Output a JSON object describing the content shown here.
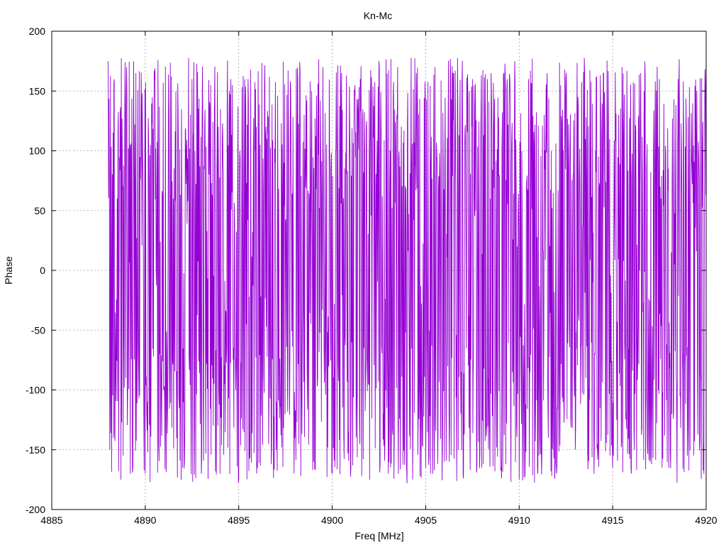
{
  "chart_data": {
    "type": "line",
    "title": "Kn-Mc",
    "xlabel": "Freq [MHz]",
    "ylabel": "Phase",
    "xlim": [
      4885,
      4920
    ],
    "ylim": [
      -200,
      200
    ],
    "xticks": [
      4885,
      4890,
      4895,
      4900,
      4905,
      4910,
      4915,
      4920
    ],
    "yticks": [
      -200,
      -150,
      -100,
      -50,
      0,
      50,
      100,
      150,
      200
    ],
    "grid": true,
    "legend": "none",
    "series": [
      {
        "color": "#9400d3",
        "x_start": 4888.0,
        "x_end": 4920.0,
        "sample_step": 0.02,
        "description_range": [
          -180,
          180
        ],
        "anchor_points": [
          [
            4888.0,
            175
          ],
          [
            4888.1,
            -150
          ],
          [
            4888.3,
            -140
          ],
          [
            4888.5,
            60
          ],
          [
            4888.7,
            -175
          ],
          [
            4889.0,
            170
          ],
          [
            4889.2,
            -170
          ],
          [
            4889.5,
            165
          ],
          [
            4890.0,
            -170
          ],
          [
            4890.5,
            160
          ],
          [
            4891.0,
            -100
          ],
          [
            4891.5,
            60
          ],
          [
            4892.0,
            -165
          ],
          [
            4892.5,
            160
          ],
          [
            4893.0,
            -170
          ],
          [
            4893.5,
            155
          ],
          [
            4894.0,
            -170
          ],
          [
            4894.5,
            150
          ],
          [
            4895.0,
            -175
          ],
          [
            4895.5,
            160
          ],
          [
            4896.0,
            -165
          ],
          [
            4896.5,
            110
          ],
          [
            4897.0,
            -150
          ],
          [
            4897.5,
            40
          ],
          [
            4898.0,
            -140
          ],
          [
            4898.5,
            130
          ],
          [
            4899.0,
            -160
          ],
          [
            4899.5,
            170
          ],
          [
            4900.0,
            -170
          ],
          [
            4900.5,
            165
          ],
          [
            4901.0,
            -165
          ],
          [
            4901.5,
            160
          ],
          [
            4902.0,
            -175
          ],
          [
            4902.5,
            175
          ],
          [
            4903.0,
            -170
          ],
          [
            4903.5,
            170
          ],
          [
            4904.0,
            -178
          ],
          [
            4904.5,
            165
          ],
          [
            4905.0,
            -165
          ],
          [
            4905.5,
            170
          ],
          [
            4906.0,
            -160
          ],
          [
            4906.5,
            165
          ],
          [
            4907.0,
            -170
          ],
          [
            4907.5,
            160
          ],
          [
            4908.0,
            -165
          ],
          [
            4908.5,
            165
          ],
          [
            4909.0,
            -155
          ],
          [
            4909.5,
            160
          ],
          [
            4910.0,
            -175
          ],
          [
            4910.5,
            160
          ],
          [
            4911.0,
            -170
          ],
          [
            4911.5,
            165
          ],
          [
            4912.0,
            -170
          ],
          [
            4912.5,
            160
          ],
          [
            4913.0,
            -150
          ],
          [
            4913.5,
            165
          ],
          [
            4914.0,
            -170
          ],
          [
            4914.5,
            165
          ],
          [
            4915.0,
            -165
          ],
          [
            4915.5,
            170
          ],
          [
            4916.0,
            -170
          ],
          [
            4916.5,
            165
          ],
          [
            4917.0,
            -160
          ],
          [
            4917.5,
            160
          ],
          [
            4918.0,
            -165
          ],
          [
            4918.5,
            160
          ],
          [
            4919.0,
            -155
          ],
          [
            4919.5,
            150
          ],
          [
            4920.0,
            175
          ]
        ]
      }
    ]
  }
}
